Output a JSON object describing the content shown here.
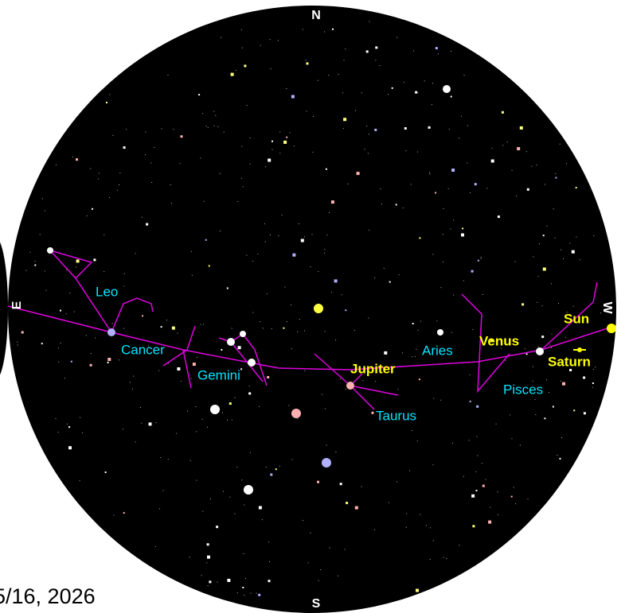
{
  "compass": {
    "north": "N",
    "south": "S",
    "east": "E",
    "west": "W"
  },
  "constellations": [
    "Leo",
    "Cancer",
    "Gemini",
    "Taurus",
    "Aries",
    "Pisces"
  ],
  "planets": [
    "Jupiter",
    "Venus",
    "Sun",
    "Saturn"
  ],
  "date": "5/16, 2026"
}
